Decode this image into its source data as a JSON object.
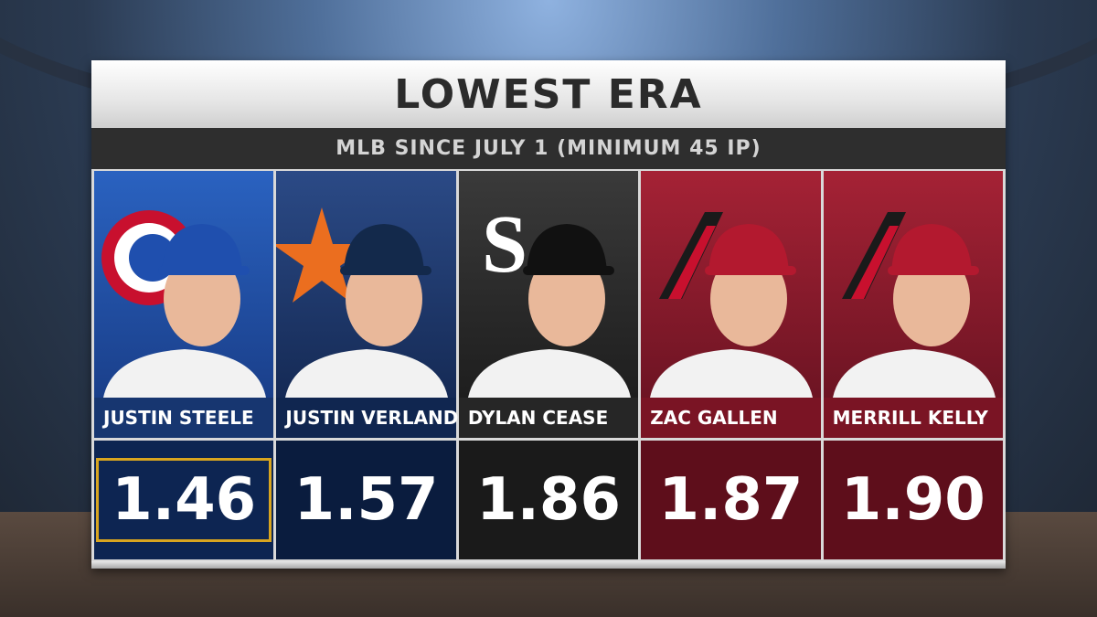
{
  "header": {
    "title": "LOWEST ERA",
    "subtitle": "MLB SINCE JULY 1 (MINIMUM 45 IP)"
  },
  "players": [
    {
      "name": "JUSTIN STEELE",
      "era": "1.46"
    },
    {
      "name": "JUSTIN VERLANDER",
      "era": "1.57"
    },
    {
      "name": "DYLAN CEASE",
      "era": "1.86"
    },
    {
      "name": "ZAC GALLEN",
      "era": "1.87"
    },
    {
      "name": "MERRILL KELLY",
      "era": "1.90"
    }
  ]
}
